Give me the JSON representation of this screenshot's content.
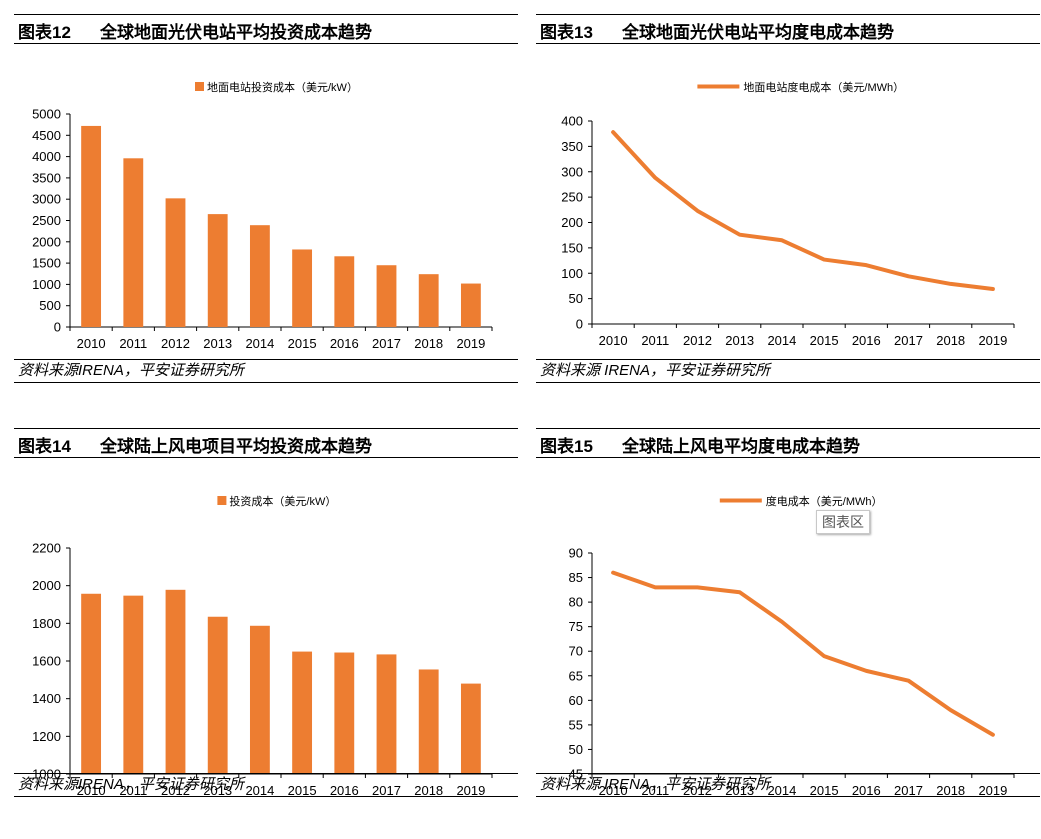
{
  "colors": {
    "series": "#ED7D31",
    "axis": "#000000",
    "text": "#000000"
  },
  "charts": [
    {
      "figure_label": "图表12",
      "title": "全球地面光伏电站平均投资成本趋势",
      "source": "资料来源IRENA，平安证券研究所",
      "legend": "地面电站投资成本（美元/kW）"
    },
    {
      "figure_label": "图表13",
      "title": "全球地面光伏电站平均度电成本趋势",
      "source": "资料来源 IRENA，平安证券研究所",
      "legend": "地面电站度电成本（美元/MWh）"
    },
    {
      "figure_label": "图表14",
      "title": "全球陆上风电项目平均投资成本趋势",
      "source": "资料来源IRENA，平安证券研究所",
      "legend": "投资成本（美元/kW）"
    },
    {
      "figure_label": "图表15",
      "title": "全球陆上风电平均度电成本趋势",
      "source": "资料来源 IRENA，平安证券研究所",
      "legend": "度电成本（美元/MWh）",
      "area_label": "图表区"
    }
  ],
  "chart_data": [
    {
      "type": "bar",
      "title": "全球地面光伏电站平均投资成本趋势",
      "categories": [
        "2010",
        "2011",
        "2012",
        "2013",
        "2014",
        "2015",
        "2016",
        "2017",
        "2018",
        "2019"
      ],
      "series": [
        {
          "name": "地面电站投资成本（美元/kW）",
          "values": [
            4720,
            3960,
            3020,
            2650,
            2390,
            1820,
            1660,
            1450,
            1240,
            1020
          ]
        }
      ],
      "ylim": [
        0,
        5000
      ],
      "yticks": [
        0,
        500,
        1000,
        1500,
        2000,
        2500,
        3000,
        3500,
        4000,
        4500,
        5000
      ],
      "xlabel": "",
      "ylabel": "",
      "legend_position": "top-center"
    },
    {
      "type": "line",
      "title": "全球地面光伏电站平均度电成本趋势",
      "categories": [
        "2010",
        "2011",
        "2012",
        "2013",
        "2014",
        "2015",
        "2016",
        "2017",
        "2018",
        "2019"
      ],
      "series": [
        {
          "name": "地面电站度电成本（美元/MWh）",
          "values": [
            378,
            288,
            223,
            176,
            165,
            127,
            116,
            94,
            79,
            69
          ]
        }
      ],
      "ylim": [
        0,
        400
      ],
      "yticks": [
        0,
        50,
        100,
        150,
        200,
        250,
        300,
        350,
        400
      ],
      "xlabel": "",
      "ylabel": "",
      "legend_position": "top-center"
    },
    {
      "type": "bar",
      "title": "全球陆上风电项目平均投资成本趋势",
      "categories": [
        "2010",
        "2011",
        "2012",
        "2013",
        "2014",
        "2015",
        "2016",
        "2017",
        "2018",
        "2019"
      ],
      "series": [
        {
          "name": "投资成本（美元/kW）",
          "values": [
            1957,
            1947,
            1978,
            1835,
            1787,
            1650,
            1645,
            1635,
            1555,
            1480
          ]
        }
      ],
      "ylim": [
        1000,
        2200
      ],
      "yticks": [
        1000,
        1200,
        1400,
        1600,
        1800,
        2000,
        2200
      ],
      "xlabel": "",
      "ylabel": "",
      "legend_position": "top-center"
    },
    {
      "type": "line",
      "title": "全球陆上风电平均度电成本趋势",
      "categories": [
        "2010",
        "2011",
        "2012",
        "2013",
        "2014",
        "2015",
        "2016",
        "2017",
        "2018",
        "2019"
      ],
      "series": [
        {
          "name": "度电成本（美元/MWh）",
          "values": [
            86,
            83,
            83,
            82,
            76,
            69,
            66,
            64,
            58,
            53
          ]
        }
      ],
      "ylim": [
        45,
        90
      ],
      "yticks": [
        45,
        50,
        55,
        60,
        65,
        70,
        75,
        80,
        85,
        90
      ],
      "xlabel": "",
      "ylabel": "",
      "legend_position": "top-center"
    }
  ]
}
